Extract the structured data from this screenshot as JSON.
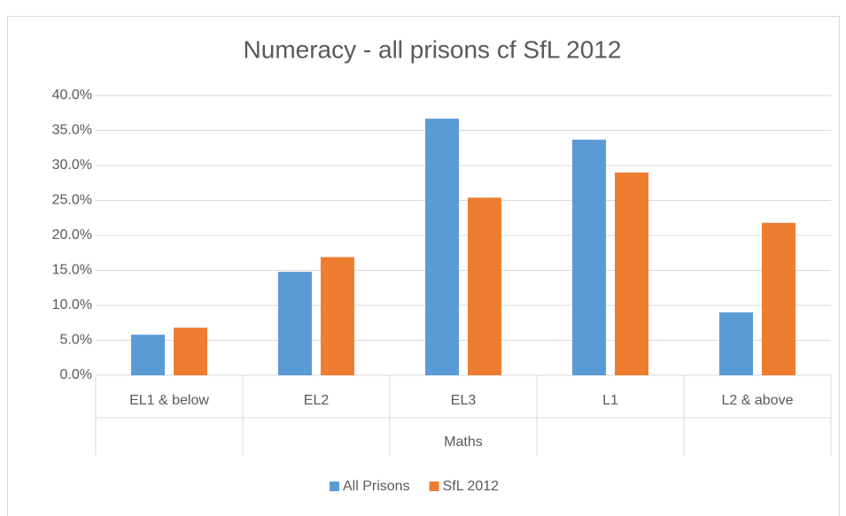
{
  "chart_data": {
    "type": "bar",
    "title": "Numeracy - all prisons cf SfL 2012",
    "categories": [
      "EL1 & below",
      "EL2",
      "EL3",
      "L1",
      "L2 & above"
    ],
    "x_group_label": "Maths",
    "series": [
      {
        "name": "All Prisons",
        "color": "#5b9bd5",
        "values": [
          5.8,
          14.8,
          36.7,
          33.7,
          9.0
        ]
      },
      {
        "name": "SfL 2012",
        "color": "#ed7d31",
        "values": [
          6.8,
          16.9,
          25.4,
          29.0,
          21.8
        ]
      }
    ],
    "ylim": [
      0,
      40
    ],
    "yticks": [
      {
        "value": 0,
        "label": "0.0%"
      },
      {
        "value": 5,
        "label": "5.0%"
      },
      {
        "value": 10,
        "label": "10.0%"
      },
      {
        "value": 15,
        "label": "15.0%"
      },
      {
        "value": 20,
        "label": "20.0%"
      },
      {
        "value": 25,
        "label": "25.0%"
      },
      {
        "value": 30,
        "label": "30.0%"
      },
      {
        "value": 35,
        "label": "35.0%"
      },
      {
        "value": 40,
        "label": "40.0%"
      }
    ],
    "grid": true,
    "legend": "bottom"
  }
}
